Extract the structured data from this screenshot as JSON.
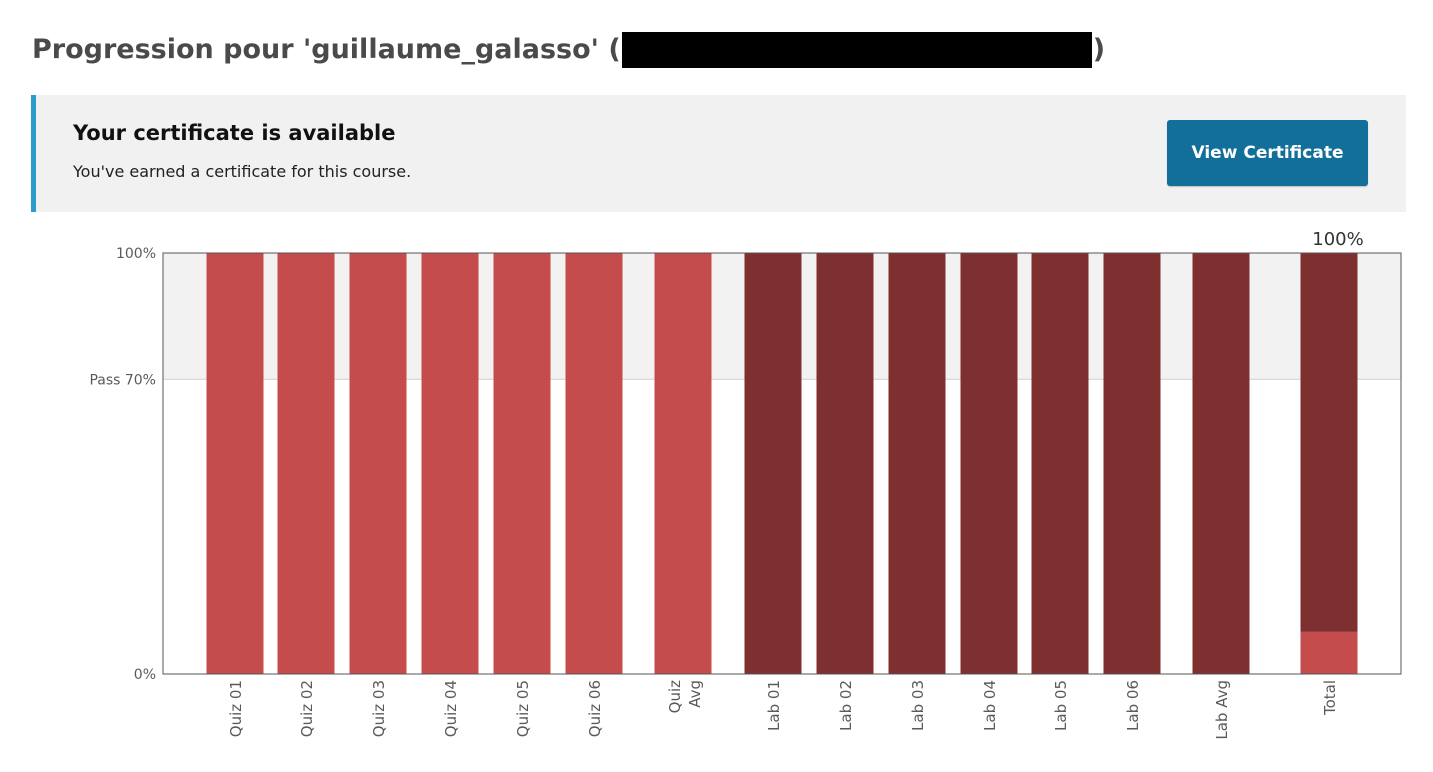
{
  "page": {
    "title_prefix": "Progression pour 'guillaume_galasso' (",
    "title_suffix": ")"
  },
  "certificate": {
    "title": "Your certificate is available",
    "message": "You've earned a certificate for this course.",
    "button_label": "View Certificate"
  },
  "colors": {
    "quiz": "#c44c4d",
    "lab": "#7e3031",
    "total_lab_part": "#7e3031",
    "total_quiz_part": "#c44c4d",
    "pass_zone": "#f2f2f2",
    "accent": "#2f9bcb",
    "button": "#126f9a"
  },
  "chart_data": {
    "type": "bar",
    "categories": [
      "Quiz 01",
      "Quiz 02",
      "Quiz 03",
      "Quiz 04",
      "Quiz 05",
      "Quiz 06",
      "Quiz Avg",
      "Lab 01",
      "Lab 02",
      "Lab 03",
      "Lab 04",
      "Lab 05",
      "Lab 06",
      "Lab Avg",
      "Total"
    ],
    "groups": [
      "quiz",
      "quiz",
      "quiz",
      "quiz",
      "quiz",
      "quiz",
      "quiz",
      "lab",
      "lab",
      "lab",
      "lab",
      "lab",
      "lab",
      "lab",
      "total"
    ],
    "values": [
      100,
      100,
      100,
      100,
      100,
      100,
      100,
      100,
      100,
      100,
      100,
      100,
      100,
      100,
      100
    ],
    "total_breakdown": {
      "quiz": 10,
      "lab": 90
    },
    "ylim": [
      0,
      100
    ],
    "y_ticks": [
      {
        "value": 100,
        "label": "100%"
      },
      {
        "value": 70,
        "label": "Pass 70%"
      },
      {
        "value": 0,
        "label": "0%"
      }
    ],
    "pass_threshold": 70,
    "total_label": "100%",
    "title": "",
    "xlabel": "",
    "ylabel": ""
  }
}
